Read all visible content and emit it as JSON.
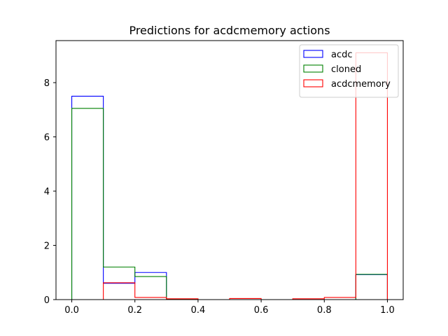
{
  "chart_data": {
    "type": "bar",
    "title": "Predictions for acdcmemory actions",
    "xlabel": "",
    "ylabel": "",
    "xlim": [
      -0.05,
      1.05
    ],
    "ylim": [
      0,
      9.55
    ],
    "x_ticks": [
      0.0,
      0.2,
      0.4,
      0.6,
      0.8,
      1.0
    ],
    "x_tick_labels": [
      "0.0",
      "0.2",
      "0.4",
      "0.6",
      "0.8",
      "1.0"
    ],
    "y_ticks": [
      0,
      2,
      4,
      6,
      8
    ],
    "y_tick_labels": [
      "0",
      "2",
      "4",
      "6",
      "8"
    ],
    "bin_edges": [
      0.0,
      0.1,
      0.2,
      0.3,
      0.4,
      0.5,
      0.6,
      0.7,
      0.8,
      0.9,
      1.0
    ],
    "histtype": "step",
    "grid": false,
    "legend_position": "top-right",
    "series": [
      {
        "name": "acdc",
        "color": "#0000ff",
        "values": [
          7.5,
          0.6,
          1.0,
          0.02,
          0.0,
          0.0,
          0.0,
          0.0,
          0.0,
          0.92
        ]
      },
      {
        "name": "cloned",
        "color": "#008000",
        "values": [
          7.05,
          1.2,
          0.85,
          0.02,
          0.0,
          0.0,
          0.0,
          0.0,
          0.0,
          0.93
        ]
      },
      {
        "name": "acdcmemory",
        "color": "#ff0000",
        "values": [
          0.0,
          0.62,
          0.08,
          0.03,
          0.0,
          0.04,
          0.0,
          0.03,
          0.08,
          9.1
        ]
      }
    ]
  }
}
